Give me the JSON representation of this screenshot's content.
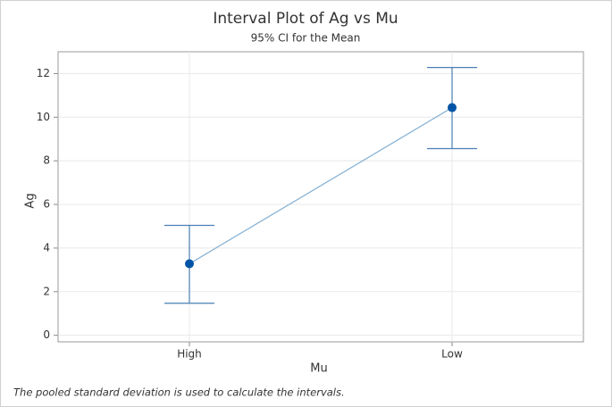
{
  "chart_data": {
    "type": "interval",
    "title": "Interval Plot of Ag vs Mu",
    "subtitle": "95% CI for the Mean",
    "x_label": "Mu",
    "y_label": "Ag",
    "footnote": "The pooled standard deviation is used to calculate the intervals.",
    "categories": [
      "High",
      "Low"
    ],
    "series": [
      {
        "values": [
          3.28,
          10.44
        ],
        "lower": [
          1.47,
          8.56
        ],
        "upper": [
          5.04,
          12.28
        ],
        "color": "#0054a6",
        "line_color": "#8ab3d4",
        "bar_color": "#4a7fb5"
      }
    ],
    "ylim": [
      -0.3,
      13.0
    ],
    "yticks": [
      0,
      2,
      4,
      6,
      8,
      10,
      12
    ],
    "grid": true
  }
}
